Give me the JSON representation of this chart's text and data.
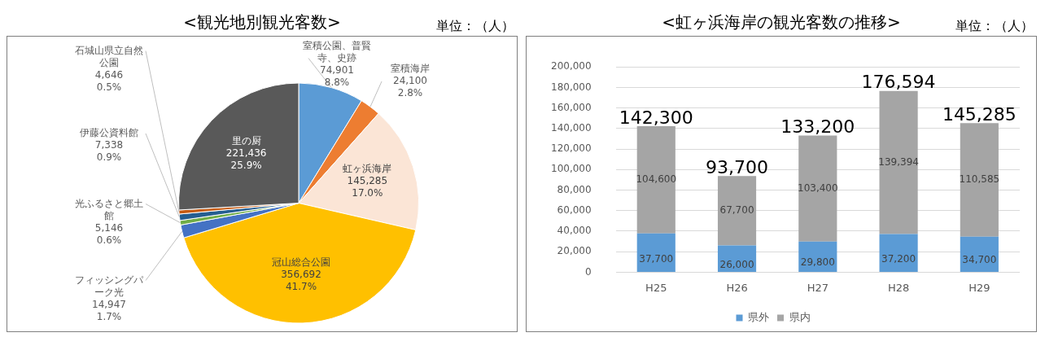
{
  "chart_data": [
    {
      "type": "pie",
      "title": "<観光地別観光客数>",
      "annotations": [
        "単位：（人）"
      ],
      "categories": [
        "室積公園、普賢寺、史跡",
        "室積海岸",
        "虹ヶ浜海岸",
        "冠山総合公園",
        "フィッシングパーク光",
        "光ふるさと郷土館",
        "伊藤公資料館",
        "石城山県立自然公園",
        "里の厨"
      ],
      "values": [
        74901,
        24100,
        145285,
        356692,
        14947,
        5146,
        7338,
        4646,
        221436
      ],
      "colors": [
        "#5b9bd5",
        "#ed7d31",
        "#fbe5d6",
        "#ffc000",
        "#4472c4",
        "#70ad47",
        "#255e91",
        "#c55a11",
        "#595959"
      ],
      "value_labels": [
        "74,901\n8.8%",
        "24,100\n2.8%",
        "145,285\n17.0%",
        "356,692\n41.7%",
        "14,947\n1.7%",
        "5,146\n0.6%",
        "7,338\n0.9%",
        "4,646\n0.5%",
        "221,436\n25.9%"
      ]
    },
    {
      "type": "bar",
      "stacked": true,
      "title": "<虹ヶ浜海岸の観光客数の推移>",
      "annotations": [
        "単位：（人）"
      ],
      "categories": [
        "H25",
        "H26",
        "H27",
        "H28",
        "H29"
      ],
      "series": [
        {
          "name": "県外",
          "color": "#5b9bd5",
          "values": [
            37700,
            26000,
            29800,
            37200,
            34700
          ],
          "value_labels": [
            "37,700",
            "26,000",
            "29,800",
            "37,200",
            "34,700"
          ]
        },
        {
          "name": "県内",
          "color": "#a5a5a5",
          "values": [
            104600,
            67700,
            103400,
            139394,
            110585
          ],
          "value_labels": [
            "104,600",
            "67,700",
            "103,400",
            "139,394",
            "110,585"
          ]
        }
      ],
      "totals": [
        "142,300",
        "93,700",
        "133,200",
        "176,594",
        "145,285"
      ],
      "ylim": [
        0,
        200000
      ],
      "yticks": [
        {
          "value": 0,
          "label": "0"
        },
        {
          "value": 20000,
          "label": "20,000"
        },
        {
          "value": 40000,
          "label": "40,000"
        },
        {
          "value": 60000,
          "label": "60,000"
        },
        {
          "value": 80000,
          "label": "80,000"
        },
        {
          "value": 100000,
          "label": "100,000"
        },
        {
          "value": 120000,
          "label": "120,000"
        },
        {
          "value": 140000,
          "label": "140,000"
        },
        {
          "value": 160000,
          "label": "160,000"
        },
        {
          "value": 180000,
          "label": "180,000"
        },
        {
          "value": 200000,
          "label": "200,000"
        }
      ],
      "grid": "y",
      "legend": "bottom"
    }
  ]
}
